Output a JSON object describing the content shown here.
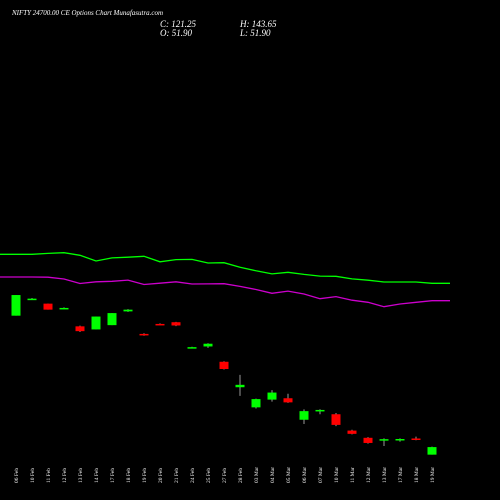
{
  "header": {
    "title": "NIFTY 24700.00 CE Options Chart Munafasutra.com",
    "close": "C: 121.25",
    "open": "O: 51.90",
    "high": "H: 143.65",
    "low": "L: 51.90"
  },
  "colors": {
    "up": "#00ff00",
    "down": "#ff0000",
    "line1": "#00ff00",
    "line2": "#cc00cc",
    "wick": "#999999",
    "background": "#000000",
    "text": "#ffffff"
  },
  "chart_data": {
    "type": "candlestick",
    "price_range": [
      51.9,
      143.65
    ],
    "dates": [
      "06 Feb",
      "10 Feb",
      "11 Feb",
      "12 Feb",
      "13 Feb",
      "14 Feb",
      "17 Feb",
      "18 Feb",
      "19 Feb",
      "20 Feb",
      "21 Feb",
      "24 Feb",
      "25 Feb",
      "27 Feb",
      "28 Feb",
      "03 Mar",
      "04 Mar",
      "05 Mar",
      "06 Mar",
      "07 Mar",
      "10 Mar",
      "11 Mar",
      "12 Mar",
      "13 Mar",
      "17 Mar",
      "18 Mar",
      "19 Mar"
    ],
    "candles": [
      {
        "o": 128.0,
        "c": 140.0,
        "h": 140.0,
        "l": 128.0
      },
      {
        "o": 137.9,
        "c": 137.9,
        "h": 138.3,
        "l": 137.5
      },
      {
        "o": 135.0,
        "c": 131.5,
        "h": 135.0,
        "l": 131.5
      },
      {
        "o": 132.0,
        "c": 132.5,
        "h": 132.8,
        "l": 131.8
      },
      {
        "o": 121.8,
        "c": 119.0,
        "h": 122.2,
        "l": 118.5
      },
      {
        "o": 120.0,
        "c": 127.5,
        "h": 127.5,
        "l": 120.0
      },
      {
        "o": 122.5,
        "c": 129.5,
        "h": 129.5,
        "l": 122.5
      },
      {
        "o": 130.5,
        "c": 131.5,
        "h": 131.8,
        "l": 130.2
      },
      {
        "o": 117.4,
        "c": 116.6,
        "h": 117.8,
        "l": 116.3
      },
      {
        "o": 123.2,
        "c": 122.8,
        "h": 123.5,
        "l": 122.5
      },
      {
        "o": 124.2,
        "c": 122.3,
        "h": 124.4,
        "l": 121.9
      },
      {
        "o": 109.3,
        "c": 109.7,
        "h": 109.9,
        "l": 109.1
      },
      {
        "o": 110.1,
        "c": 111.7,
        "h": 112.0,
        "l": 109.3
      },
      {
        "o": 101.2,
        "c": 97.0,
        "h": 101.5,
        "l": 96.7
      },
      {
        "o": 86.4,
        "c": 87.8,
        "h": 93.6,
        "l": 81.4
      },
      {
        "o": 74.7,
        "c": 79.5,
        "h": 79.8,
        "l": 74.0
      },
      {
        "o": 79.2,
        "c": 83.3,
        "h": 84.7,
        "l": 78.0
      },
      {
        "o": 80.0,
        "c": 77.6,
        "h": 82.6,
        "l": 77.3
      },
      {
        "o": 67.5,
        "c": 72.5,
        "h": 73.5,
        "l": 65.0
      },
      {
        "o": 72.4,
        "c": 73.2,
        "h": 73.6,
        "l": 70.7
      },
      {
        "o": 70.7,
        "c": 64.5,
        "h": 71.4,
        "l": 63.8
      },
      {
        "o": 61.2,
        "c": 59.3,
        "h": 61.7,
        "l": 59.0
      },
      {
        "o": 57.0,
        "c": 54.0,
        "h": 57.4,
        "l": 53.6
      },
      {
        "o": 55.6,
        "c": 56.2,
        "h": 56.7,
        "l": 52.2
      },
      {
        "o": 55.5,
        "c": 56.3,
        "h": 56.7,
        "l": 54.8
      },
      {
        "o": 56.6,
        "c": 55.8,
        "h": 57.7,
        "l": 55.6
      },
      {
        "o": 47.2,
        "c": 51.6,
        "h": 51.9,
        "l": 47.2
      }
    ],
    "line_series": [
      {
        "values": [
          163.7,
          163.7,
          164.2,
          164.6,
          163.1,
          159.8,
          161.6,
          162.0,
          162.5,
          159.3,
          160.6,
          160.7,
          158.6,
          158.8,
          156.1,
          154.1,
          152.3,
          153.2,
          152.0,
          151.0,
          150.9,
          149.4,
          148.6,
          147.6,
          147.6,
          147.6,
          146.8
        ]
      },
      {
        "values": [
          150.5,
          150.5,
          150.4,
          149.3,
          146.7,
          147.7,
          148.0,
          148.7,
          146.1,
          146.9,
          147.7,
          146.4,
          146.5,
          146.6,
          145.0,
          143.2,
          141.0,
          142.3,
          140.6,
          137.9,
          139.1,
          137.0,
          135.8,
          133.2,
          134.8,
          135.8,
          136.7
        ]
      }
    ]
  }
}
